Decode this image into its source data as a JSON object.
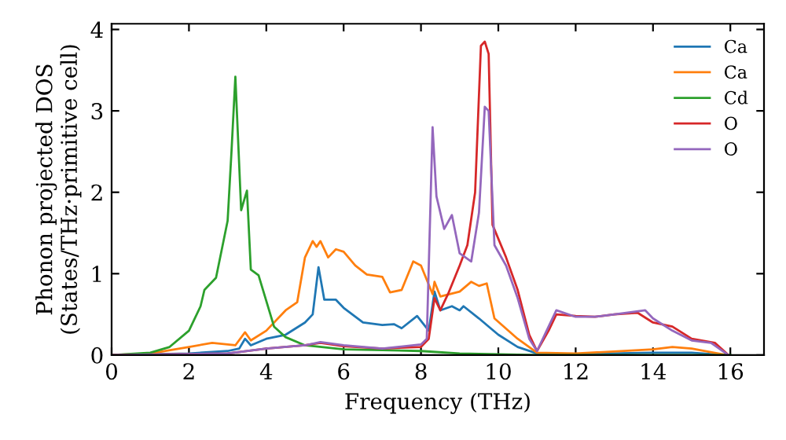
{
  "chart_data": {
    "type": "line",
    "xlabel": "Frequency (THz)",
    "ylabel": "Phonon projected DOS\n(States/THz·primitive cell)",
    "xlim": [
      0,
      16.87
    ],
    "ylim": [
      0,
      4.07
    ],
    "xticks": [
      0,
      2,
      4,
      6,
      8,
      10,
      12,
      14,
      16
    ],
    "yticks": [
      0,
      1,
      2,
      3,
      4
    ],
    "grid": false,
    "legend": "top right",
    "series": [
      {
        "name": "Ca",
        "color": "#1f77b4",
        "x": [
          0,
          2,
          3,
          3.3,
          3.45,
          3.6,
          4,
          4.5,
          5,
          5.2,
          5.35,
          5.5,
          5.8,
          6,
          6.5,
          7,
          7.3,
          7.5,
          7.9,
          8.2,
          8.35,
          8.5,
          8.8,
          9,
          9.1,
          9.5,
          9.8,
          10,
          10.5,
          11,
          12,
          14,
          15,
          15.9
        ],
        "values": [
          0,
          0.02,
          0.05,
          0.08,
          0.2,
          0.12,
          0.2,
          0.25,
          0.4,
          0.5,
          1.08,
          0.68,
          0.68,
          0.58,
          0.4,
          0.37,
          0.38,
          0.33,
          0.48,
          0.3,
          0.78,
          0.55,
          0.6,
          0.55,
          0.6,
          0.45,
          0.33,
          0.25,
          0.1,
          0.02,
          0.01,
          0.03,
          0.03,
          0
        ]
      },
      {
        "name": "Ca",
        "color": "#ff7f0e",
        "x": [
          0,
          1,
          2,
          2.6,
          3.2,
          3.45,
          3.6,
          4,
          4.5,
          4.8,
          5,
          5.2,
          5.3,
          5.4,
          5.6,
          5.8,
          6,
          6.3,
          6.6,
          7,
          7.2,
          7.5,
          7.8,
          8,
          8.3,
          8.35,
          8.5,
          9,
          9.3,
          9.5,
          9.7,
          9.9,
          10.5,
          11,
          12,
          14,
          14.5,
          15,
          15.9
        ],
        "values": [
          0,
          0.02,
          0.1,
          0.15,
          0.12,
          0.28,
          0.18,
          0.3,
          0.55,
          0.65,
          1.2,
          1.4,
          1.33,
          1.4,
          1.2,
          1.3,
          1.27,
          1.1,
          0.99,
          0.96,
          0.77,
          0.8,
          1.15,
          1.1,
          0.75,
          0.9,
          0.72,
          0.78,
          0.9,
          0.85,
          0.88,
          0.45,
          0.2,
          0.03,
          0.02,
          0.07,
          0.1,
          0.08,
          0
        ]
      },
      {
        "name": "Cd",
        "color": "#2ca02c",
        "x": [
          0,
          1,
          1.5,
          2,
          2.3,
          2.4,
          2.7,
          3,
          3.1,
          3.2,
          3.35,
          3.5,
          3.6,
          3.8,
          4.2,
          4.5,
          5,
          6,
          7,
          8,
          9,
          10,
          11,
          16
        ],
        "values": [
          0,
          0.03,
          0.1,
          0.3,
          0.6,
          0.8,
          0.95,
          1.65,
          2.5,
          3.42,
          1.78,
          2.02,
          1.05,
          0.98,
          0.35,
          0.22,
          0.12,
          0.07,
          0.06,
          0.05,
          0.02,
          0.01,
          0,
          0
        ]
      },
      {
        "name": "O",
        "color": "#d62728",
        "x": [
          0,
          3,
          4,
          5,
          5.4,
          6,
          7,
          8,
          8.2,
          8.35,
          8.5,
          8.7,
          9,
          9.2,
          9.4,
          9.55,
          9.65,
          9.75,
          9.85,
          10.2,
          10.5,
          10.8,
          11,
          11.3,
          11.5,
          12,
          12.5,
          13,
          13.6,
          14,
          14.5,
          15,
          15.6,
          15.95
        ],
        "values": [
          0,
          0.02,
          0.08,
          0.12,
          0.15,
          0.11,
          0.08,
          0.1,
          0.2,
          0.7,
          0.55,
          0.75,
          1.1,
          1.35,
          2.0,
          3.8,
          3.85,
          3.7,
          1.6,
          1.2,
          0.8,
          0.25,
          0.05,
          0.3,
          0.5,
          0.48,
          0.47,
          0.5,
          0.52,
          0.4,
          0.35,
          0.2,
          0.15,
          0
        ]
      },
      {
        "name": "O",
        "color": "#9467bd",
        "x": [
          0,
          3,
          4,
          5,
          5.4,
          6,
          7,
          8,
          8.15,
          8.3,
          8.4,
          8.6,
          8.8,
          9,
          9.3,
          9.5,
          9.65,
          9.75,
          9.9,
          10.2,
          10.5,
          10.8,
          11,
          11.3,
          11.5,
          12,
          12.5,
          13,
          13.8,
          14,
          14.5,
          15,
          15.5,
          15.95
        ],
        "values": [
          0,
          0.02,
          0.08,
          0.12,
          0.16,
          0.12,
          0.08,
          0.13,
          0.2,
          2.8,
          1.95,
          1.55,
          1.72,
          1.25,
          1.15,
          1.75,
          3.05,
          3.0,
          1.35,
          1.1,
          0.7,
          0.2,
          0.05,
          0.35,
          0.55,
          0.47,
          0.47,
          0.5,
          0.55,
          0.45,
          0.3,
          0.18,
          0.15,
          0
        ]
      }
    ]
  }
}
